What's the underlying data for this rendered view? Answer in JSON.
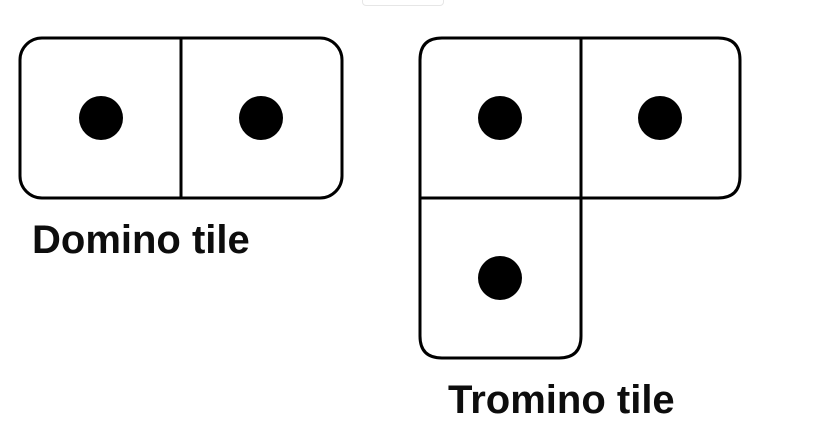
{
  "diagram": {
    "domino": {
      "caption": "Domino tile",
      "pips": 2
    },
    "tromino": {
      "caption": "Tromino tile",
      "pips": 3
    }
  },
  "colors": {
    "stroke": "#000000",
    "pip": "#000000",
    "background": "#ffffff"
  }
}
